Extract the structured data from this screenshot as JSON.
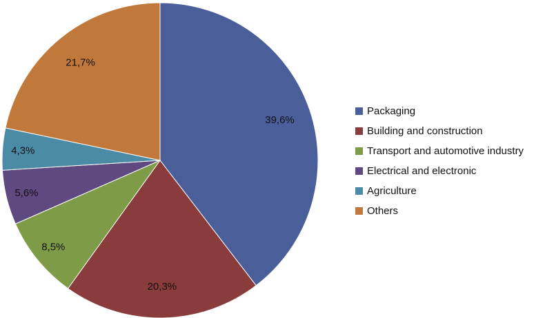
{
  "chart_data": {
    "type": "pie",
    "title": "",
    "categories": [
      "Packaging",
      "Building and construction",
      "Transport and automotive industry",
      "Electrical and electronic",
      "Agriculture",
      "Others"
    ],
    "values": [
      39.6,
      20.3,
      8.5,
      5.6,
      4.3,
      21.7
    ],
    "labels": [
      "39,6%",
      "20,3%",
      "8,5%",
      "5,6%",
      "4,3%",
      "21,7%"
    ],
    "colors": [
      "#4A5E99",
      "#8A3B3B",
      "#7E9B47",
      "#5E4A80",
      "#4C8BA6",
      "#C0793A"
    ],
    "start": "top",
    "direction": "clockwise",
    "legend_position": "right"
  }
}
